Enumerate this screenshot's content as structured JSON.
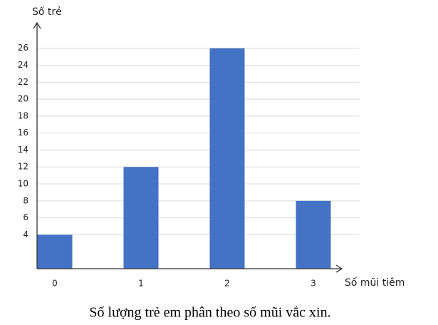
{
  "chart_data": {
    "type": "bar",
    "title": "Số lượng trẻ em phân theo số mũi vắc xin.",
    "x_label": "Số mũi tiêm",
    "y_label": "Số trẻ",
    "categories": [
      "0",
      "1",
      "2",
      "3"
    ],
    "values": [
      4,
      12,
      26,
      8
    ],
    "color": "#4472c4",
    "ylim": [
      0,
      29
    ],
    "yticks": [
      4,
      6,
      8,
      10,
      12,
      14,
      16,
      18,
      20,
      22,
      24,
      26
    ],
    "grid": true
  }
}
